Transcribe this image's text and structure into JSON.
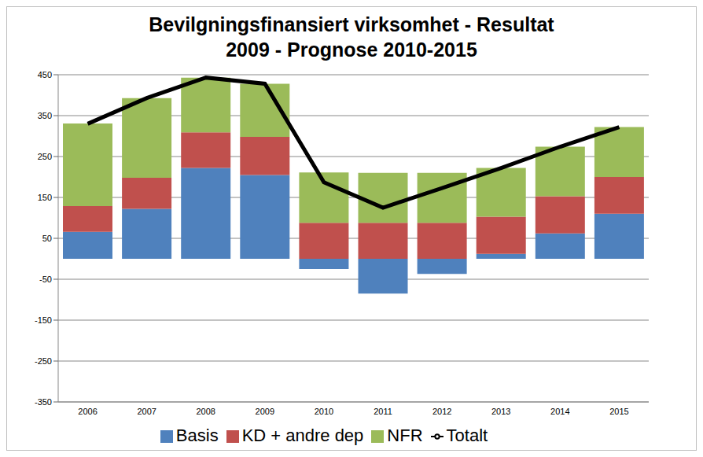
{
  "chart_data": {
    "type": "bar",
    "title": "Bevilgningsfinansiert virksomhet - Resultat",
    "subtitle": "2009 - Prognose 2010-2015",
    "categories": [
      "2006",
      "2007",
      "2008",
      "2009",
      "2010",
      "2011",
      "2012",
      "2013",
      "2014",
      "2015"
    ],
    "series": [
      {
        "name": "Basis",
        "color": "#4f81bd",
        "type": "bar",
        "values": [
          66,
          122,
          222,
          205,
          -25,
          -85,
          -37,
          12,
          62,
          110
        ]
      },
      {
        "name": "KD + andre dep",
        "color": "#c0504d",
        "type": "bar",
        "values": [
          63,
          76,
          87,
          93,
          88,
          88,
          88,
          91,
          91,
          90
        ]
      },
      {
        "name": "NFR",
        "color": "#9bbb59",
        "type": "bar",
        "values": [
          202,
          195,
          134,
          130,
          123,
          122,
          122,
          119,
          121,
          122
        ]
      },
      {
        "name": "Totalt",
        "color": "#000000",
        "type": "line",
        "line_style": "solid",
        "values": [
          330,
          393,
          443,
          428,
          187,
          125,
          173,
          222,
          274,
          322
        ]
      }
    ],
    "ylim": [
      -350,
      450
    ],
    "yticks": [
      -350,
      -250,
      -150,
      -50,
      50,
      150,
      250,
      350,
      450
    ],
    "grid": true,
    "stacked": true,
    "legend": "bottom"
  }
}
